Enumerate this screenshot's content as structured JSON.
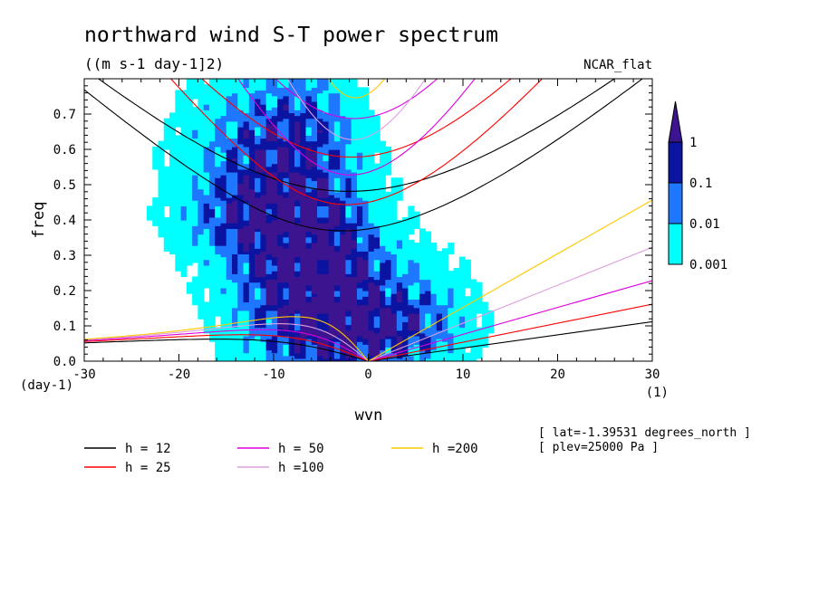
{
  "chart_data": {
    "type": "heatmap",
    "title": "northward wind S-T power spectrum",
    "subtitle": "((m s-1 day-1]2)",
    "colormap_name": "NCAR_flat",
    "xlabel": "wvn",
    "ylabel": "freq",
    "x_unit": "(1)",
    "y_unit": "(day-1)",
    "xlim": [
      -30,
      30
    ],
    "ylim": [
      0,
      0.8
    ],
    "x_ticks": [
      -30,
      -20,
      -10,
      0,
      10,
      20,
      30
    ],
    "x_tick_labels": [
      "-30",
      "-20",
      "-10",
      "0",
      "10",
      "20",
      "30"
    ],
    "y_ticks": [
      0,
      0.1,
      0.2,
      0.3,
      0.4,
      0.5,
      0.6,
      0.7
    ],
    "y_tick_labels": [
      "0.0",
      "0.1",
      "0.2",
      "0.3",
      "0.4",
      "0.5",
      "0.6",
      "0.7"
    ],
    "colorbar": {
      "levels": [
        0.001,
        0.01,
        0.1,
        1
      ],
      "labels": [
        "0.001",
        "0.01",
        "0.1",
        "1"
      ],
      "colors": [
        "#00ffff",
        "#1e78ff",
        "#0a14a0",
        "#3c1490"
      ]
    },
    "annotations": [
      "[ lat=-1.39531 degrees_north ]",
      "[ plev=25000 Pa ]"
    ],
    "dispersion_curves": [
      {
        "label": "h = 12",
        "h": 12,
        "color": "#000000"
      },
      {
        "label": "h = 25",
        "h": 25,
        "color": "#ff0000"
      },
      {
        "label": "h = 50",
        "h": 50,
        "color": "#dd00dd"
      },
      {
        "label": "h =100",
        "h": 100,
        "color": "#dda0dd"
      },
      {
        "label": "h =200",
        "h": 200,
        "color": "#ffc800"
      }
    ],
    "spectrum_blobs": [
      {
        "x": -8,
        "y": 0.32,
        "sx": 7,
        "sy": 0.32,
        "v": 1.25
      },
      {
        "x": -3,
        "y": 0.18,
        "sx": 6,
        "sy": 0.22,
        "v": 1.0
      },
      {
        "x": 3,
        "y": 0.08,
        "sx": 7,
        "sy": 0.1,
        "v": 0.85
      },
      {
        "x": -12,
        "y": 0.6,
        "sx": 8,
        "sy": 0.22,
        "v": 0.6
      },
      {
        "x": -14,
        "y": 0.4,
        "sx": 7,
        "sy": 0.1,
        "v": 0.4
      },
      {
        "x": 6,
        "y": 0.2,
        "sx": 5,
        "sy": 0.12,
        "v": 0.35
      },
      {
        "x": -6,
        "y": 0.7,
        "sx": 5,
        "sy": 0.12,
        "v": 0.35
      }
    ]
  }
}
